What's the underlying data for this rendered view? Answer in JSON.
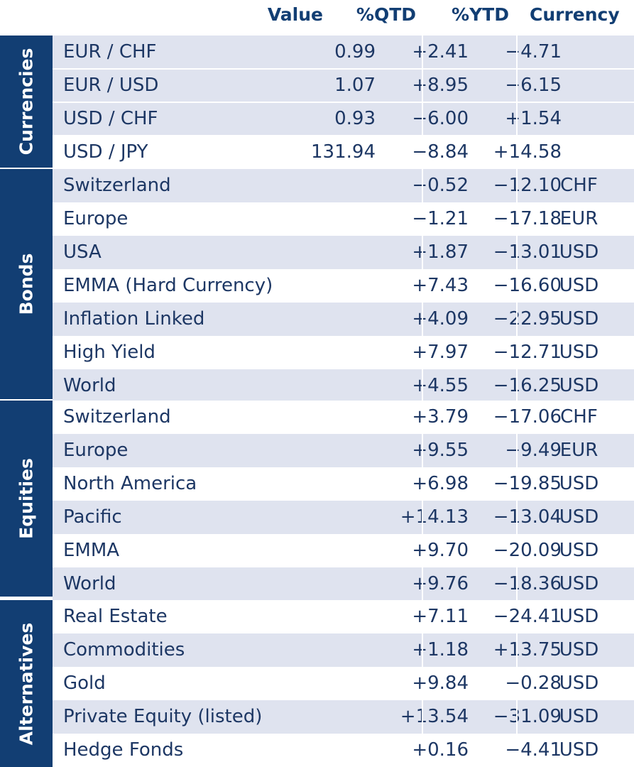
{
  "header": {
    "value": "Value",
    "qtd": "%QTD",
    "ytd": "%YTD",
    "currency": "Currency"
  },
  "groups": [
    {
      "label": "Currencies",
      "rows": [
        {
          "name": "EUR / CHF",
          "value": "0.99",
          "qtd": "+2.41",
          "ytd": "−4.71",
          "currency": ""
        },
        {
          "name": "EUR / USD",
          "value": "1.07",
          "qtd": "+8.95",
          "ytd": "−6.15",
          "currency": ""
        },
        {
          "name": "USD / CHF",
          "value": "0.93",
          "qtd": "−6.00",
          "ytd": "+1.54",
          "currency": ""
        },
        {
          "name": "USD / JPY",
          "value": "131.94",
          "qtd": "−8.84",
          "ytd": "+14.58",
          "currency": ""
        }
      ]
    },
    {
      "label": "Bonds",
      "rows": [
        {
          "name": "Switzerland",
          "value": "",
          "qtd": "−0.52",
          "ytd": "−12.10",
          "currency": "CHF"
        },
        {
          "name": "Europe",
          "value": "",
          "qtd": "−1.21",
          "ytd": "−17.18",
          "currency": "EUR"
        },
        {
          "name": "USA",
          "value": "",
          "qtd": "+1.87",
          "ytd": "−13.01",
          "currency": "USD"
        },
        {
          "name": "EMMA (Hard Currency)",
          "value": "",
          "qtd": "+7.43",
          "ytd": "−16.60",
          "currency": "USD"
        },
        {
          "name": "Inflation Linked",
          "value": "",
          "qtd": "+4.09",
          "ytd": "−22.95",
          "currency": "USD"
        },
        {
          "name": "High Yield",
          "value": "",
          "qtd": "+7.97",
          "ytd": "−12.71",
          "currency": "USD"
        },
        {
          "name": "World",
          "value": "",
          "qtd": "+4.55",
          "ytd": "−16.25",
          "currency": "USD"
        }
      ]
    },
    {
      "label": "Equities",
      "rows": [
        {
          "name": "Switzerland",
          "value": "",
          "qtd": "+3.79",
          "ytd": "−17.06",
          "currency": "CHF"
        },
        {
          "name": "Europe",
          "value": "",
          "qtd": "+9.55",
          "ytd": "−9.49",
          "currency": "EUR"
        },
        {
          "name": "North America",
          "value": "",
          "qtd": "+6.98",
          "ytd": "−19.85",
          "currency": "USD"
        },
        {
          "name": "Pacific",
          "value": "",
          "qtd": "+14.13",
          "ytd": "−13.04",
          "currency": "USD"
        },
        {
          "name": "EMMA",
          "value": "",
          "qtd": "+9.70",
          "ytd": "−20.09",
          "currency": "USD"
        },
        {
          "name": "World",
          "value": "",
          "qtd": "+9.76",
          "ytd": "−18.36",
          "currency": "USD"
        }
      ]
    },
    {
      "label": "Alternatives",
      "rows": [
        {
          "name": "Real Estate",
          "value": "",
          "qtd": "+7.11",
          "ytd": "−24.41",
          "currency": "USD"
        },
        {
          "name": "Commodities",
          "value": "",
          "qtd": "+1.18",
          "ytd": "+13.75",
          "currency": "USD"
        },
        {
          "name": "Gold",
          "value": "",
          "qtd": "+9.84",
          "ytd": "−0.28",
          "currency": "USD"
        },
        {
          "name": "Private Equity (listed)",
          "value": "",
          "qtd": "+13.54",
          "ytd": "−31.09",
          "currency": "USD"
        },
        {
          "name": "Hedge Fonds",
          "value": "",
          "qtd": "+0.16",
          "ytd": "−4.41",
          "currency": "USD"
        }
      ]
    }
  ]
}
